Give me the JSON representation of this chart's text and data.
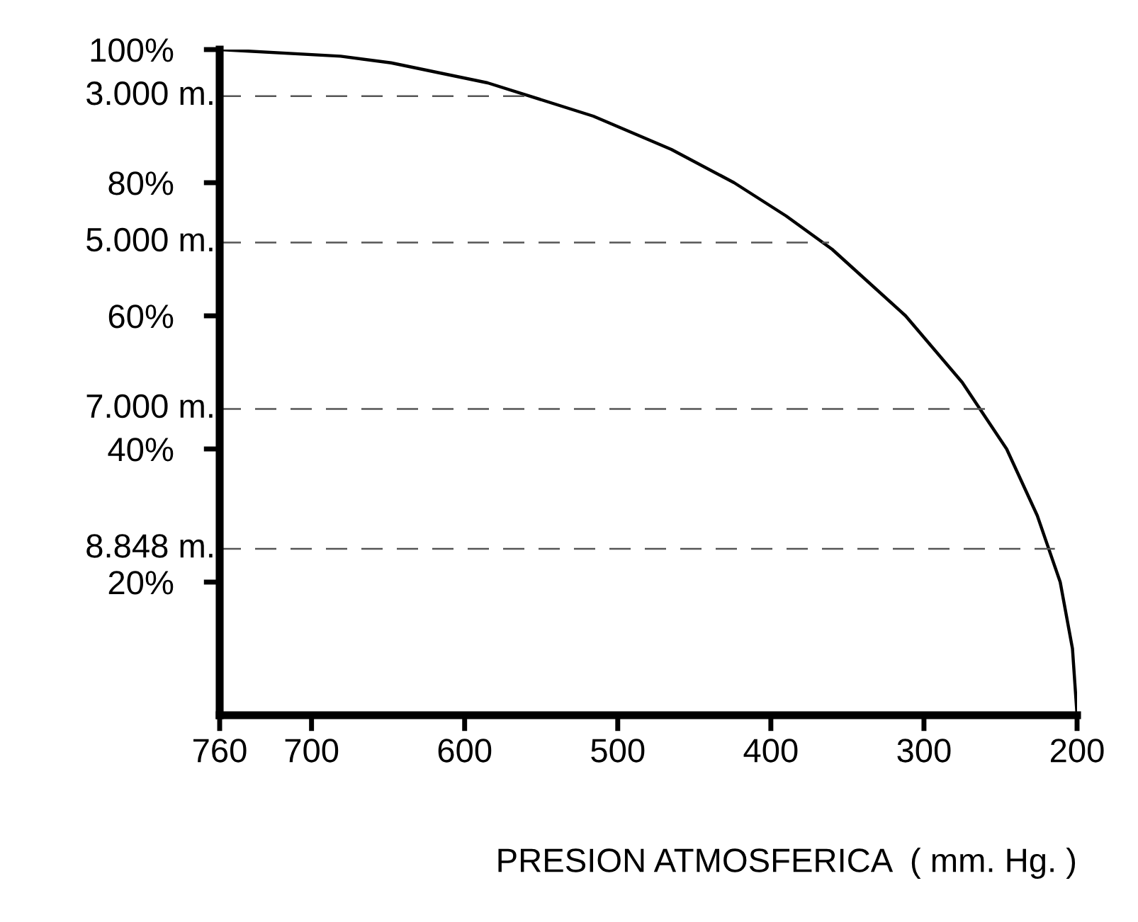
{
  "chart_data": {
    "type": "line",
    "xlabel": "PRESION ATMOSFERICA  ( mm. Hg. )",
    "x": [
      760,
      681,
      648,
      585,
      516,
      465,
      424,
      390,
      360,
      312,
      275,
      246,
      226,
      211,
      203,
      200
    ],
    "series": [
      {
        "color": "#000000",
        "values": [
          100,
          99,
          98,
          95,
          90,
          85,
          80,
          75,
          70,
          60,
          50,
          40,
          30,
          20,
          10,
          0
        ]
      }
    ],
    "xlim": [
      760,
      200
    ],
    "xticks": [
      760,
      700,
      600,
      500,
      400,
      300,
      200
    ],
    "ylim": [
      0,
      100
    ],
    "yticks": [
      {
        "value": 20,
        "label": "20%"
      },
      {
        "value": 40,
        "label": "40%"
      },
      {
        "value": 60,
        "label": "60%"
      },
      {
        "value": 80,
        "label": "80%"
      },
      {
        "value": 100,
        "label": "100%"
      }
    ],
    "ref_lines": [
      {
        "axis": "y",
        "value": 93,
        "label": "3.000 m.",
        "color": "#555555",
        "line_style": "dashed"
      },
      {
        "axis": "y",
        "value": 71,
        "label": "5.000 m.",
        "color": "#555555",
        "line_style": "dashed"
      },
      {
        "axis": "y",
        "value": 46,
        "label": "7.000 m.",
        "color": "#555555",
        "line_style": "dashed"
      },
      {
        "axis": "y",
        "value": 25,
        "label": "8.848 m.",
        "color": "#555555",
        "line_style": "dashed"
      }
    ],
    "grid": false,
    "legend": false,
    "marker": "none",
    "line_style": "solid"
  }
}
